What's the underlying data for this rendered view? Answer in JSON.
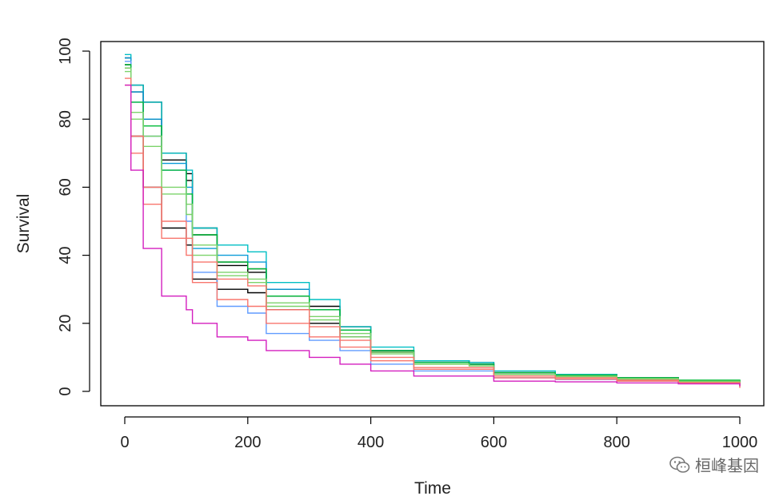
{
  "chart_data": {
    "type": "line",
    "title": "",
    "xlabel": "Time",
    "ylabel": "Survival",
    "xlim": [
      0,
      1000
    ],
    "ylim": [
      0,
      100
    ],
    "xticks": [
      "0",
      "200",
      "400",
      "600",
      "800",
      "1000"
    ],
    "yticks": [
      "0",
      "20",
      "40",
      "60",
      "80",
      "100"
    ],
    "grid": false,
    "legend": "none",
    "series": [
      {
        "color": "#000000",
        "x": [
          0,
          10,
          30,
          60,
          100,
          110,
          150,
          200,
          230,
          300,
          350,
          400,
          470,
          560,
          600,
          700,
          800,
          900,
          1000
        ],
        "y": [
          98,
          90,
          85,
          70,
          64,
          48,
          38,
          36,
          30,
          25,
          19,
          12,
          9,
          8,
          5.5,
          5,
          4,
          3,
          2
        ]
      },
      {
        "color": "#000000",
        "x": [
          0,
          10,
          30,
          60,
          100,
          110,
          150,
          200,
          230,
          300,
          350,
          400,
          470,
          560,
          600,
          700,
          800,
          900,
          1000
        ],
        "y": [
          96,
          88,
          80,
          68,
          62,
          46,
          37,
          35,
          28,
          24,
          18,
          11.5,
          8.5,
          8,
          5,
          4.5,
          3.8,
          3,
          2
        ]
      },
      {
        "color": "#000000",
        "x": [
          0,
          10,
          30,
          60,
          100,
          110,
          150,
          200,
          230,
          300,
          350,
          400,
          470,
          560,
          600,
          700,
          800,
          900,
          1000
        ],
        "y": [
          95,
          75,
          60,
          48,
          43,
          33,
          30,
          29,
          24,
          20,
          16,
          12,
          9,
          8.5,
          5.5,
          4.8,
          4,
          3.2,
          2.5
        ]
      },
      {
        "color": "#00bfc4",
        "x": [
          0,
          10,
          30,
          60,
          100,
          110,
          150,
          200,
          230,
          300,
          350,
          400,
          470,
          560,
          600,
          700,
          800,
          900,
          1000
        ],
        "y": [
          99,
          90,
          85,
          70,
          65,
          48,
          43,
          41,
          32,
          27,
          19,
          13,
          9,
          8.5,
          6,
          5,
          4,
          3,
          2.5
        ]
      },
      {
        "color": "#0a9cd8",
        "x": [
          0,
          10,
          30,
          60,
          100,
          110,
          150,
          200,
          230,
          300,
          350,
          400,
          470,
          560,
          600,
          700,
          800,
          900,
          1000
        ],
        "y": [
          98,
          88,
          80,
          67,
          60,
          42,
          40,
          38,
          30,
          24,
          18,
          12,
          8.5,
          8,
          5,
          4.5,
          3.5,
          2.8,
          2
        ]
      },
      {
        "color": "#619cff",
        "x": [
          0,
          10,
          30,
          60,
          100,
          110,
          150,
          200,
          230,
          300,
          350,
          400,
          470,
          560,
          600,
          700,
          800,
          900,
          1000
        ],
        "y": [
          97,
          85,
          75,
          65,
          50,
          35,
          25,
          23,
          17,
          15,
          12,
          8,
          6,
          6,
          4,
          3.5,
          3,
          2.5,
          1.5
        ]
      },
      {
        "color": "#00ba38",
        "x": [
          0,
          10,
          30,
          60,
          100,
          110,
          150,
          200,
          230,
          300,
          350,
          400,
          470,
          560,
          600,
          700,
          800,
          900,
          1000
        ],
        "y": [
          96,
          85,
          78,
          65,
          58,
          46,
          38,
          36,
          28,
          24,
          18,
          12,
          8.5,
          8,
          5.5,
          4.8,
          4,
          3.3,
          2
        ]
      },
      {
        "color": "#7cd36b",
        "x": [
          0,
          10,
          30,
          60,
          100,
          110,
          150,
          200,
          230,
          300,
          350,
          400,
          470,
          560,
          600,
          700,
          800,
          900,
          1000
        ],
        "y": [
          94,
          82,
          75,
          60,
          55,
          43,
          35,
          33,
          26,
          22,
          17,
          11.5,
          8,
          7.5,
          5,
          4.5,
          3.8,
          3,
          2
        ]
      },
      {
        "color": "#7cd36b",
        "x": [
          0,
          10,
          30,
          60,
          100,
          110,
          150,
          200,
          230,
          300,
          350,
          400,
          470,
          560,
          600,
          700,
          800,
          900,
          1000
        ],
        "y": [
          95,
          80,
          72,
          58,
          52,
          40,
          34,
          32,
          25,
          21,
          16,
          11,
          8,
          7.5,
          5,
          4.3,
          3.5,
          2.8,
          1.5
        ]
      },
      {
        "color": "#f8766d",
        "x": [
          0,
          10,
          30,
          60,
          100,
          110,
          150,
          200,
          230,
          300,
          350,
          400,
          470,
          560,
          600,
          700,
          800,
          900,
          1000
        ],
        "y": [
          92,
          75,
          60,
          50,
          45,
          38,
          33,
          31,
          24,
          19,
          15,
          10,
          7,
          7,
          4.5,
          4,
          3.3,
          2.6,
          1.5
        ]
      },
      {
        "color": "#f8766d",
        "x": [
          0,
          10,
          30,
          60,
          100,
          110,
          150,
          200,
          230,
          300,
          350,
          400,
          470,
          560,
          600,
          700,
          800,
          900,
          1000
        ],
        "y": [
          90,
          70,
          55,
          45,
          40,
          32,
          27,
          25,
          20,
          16,
          13,
          9,
          6.5,
          6.5,
          4,
          3.6,
          3,
          2.4,
          1
        ]
      },
      {
        "color": "#d41fbf",
        "x": [
          0,
          10,
          30,
          60,
          100,
          110,
          150,
          200,
          230,
          300,
          350,
          400,
          470,
          560,
          600,
          700,
          800,
          900,
          1000
        ],
        "y": [
          90,
          65,
          42,
          28,
          24,
          20,
          16,
          15,
          12,
          10,
          8,
          6,
          4.5,
          4.5,
          3,
          2.8,
          2.5,
          2.2,
          1.5
        ]
      }
    ]
  },
  "watermark": {
    "text": "桓峰基因",
    "icon": "wechat-icon"
  }
}
